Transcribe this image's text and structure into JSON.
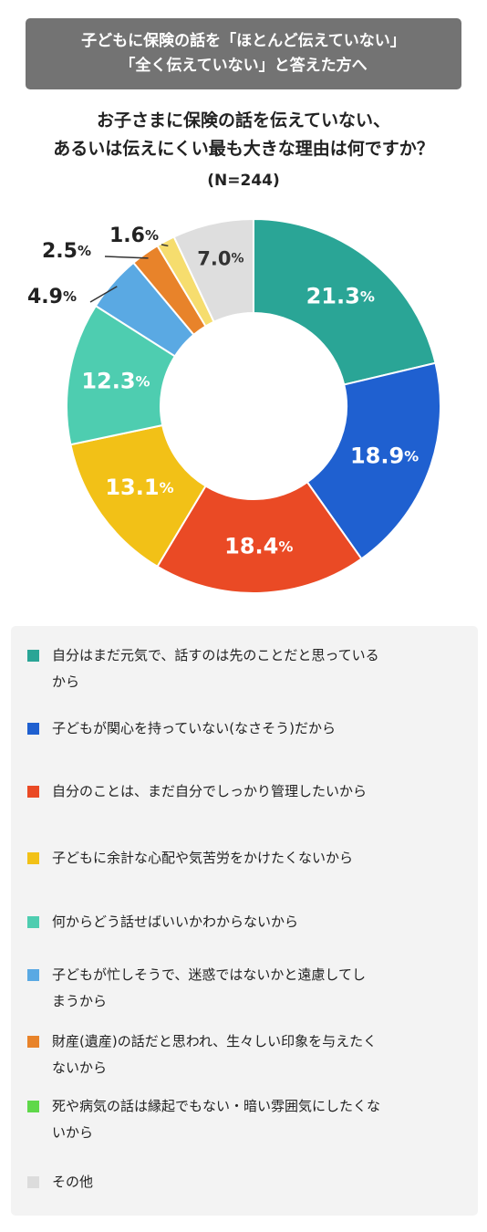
{
  "banner": {
    "line1": "子どもに保険の話を「ほとんど伝えていない」",
    "line2": "「全く伝えていない」と答えた方へ"
  },
  "title": {
    "line1": "お子さまに保険の話を伝えていない、",
    "line2": "あるいは伝えにくい最も大きな理由は何ですか？"
  },
  "sample_size": "(N=244)",
  "chart_data": {
    "type": "pie",
    "donut": true,
    "start": "top, clockwise",
    "unit": "%",
    "slices": [
      {
        "label": "自分はまだ元気で、話すのは先のことだと思っているから",
        "value": 21.3,
        "color": "#2aa596"
      },
      {
        "label": "子どもが関心を持っていない(なさそう)だから",
        "value": 18.9,
        "color": "#1f60d0"
      },
      {
        "label": "自分のことは、まだ自分でしっかり管理したいから",
        "value": 18.4,
        "color": "#ea4a25"
      },
      {
        "label": "子どもに余計な心配や気苦労をかけたくないから",
        "value": 13.1,
        "color": "#f2c117"
      },
      {
        "label": "何からどう話せばいいかわからないから",
        "value": 12.3,
        "color": "#4ecdb0"
      },
      {
        "label": "子どもが忙しそうで、迷惑ではないかと遠慮してしまうから",
        "value": 4.9,
        "color": "#5aa9e3"
      },
      {
        "label": "財産(遺産)の話だと思われ、生々しい印象を与えたくないから",
        "value": 2.5,
        "color": "#e8832a"
      },
      {
        "label": "死や病気の話は縁起でもない・暗い雰囲気にしたくないから",
        "value": 1.6,
        "color": "#f6dd6e"
      },
      {
        "label": "その他",
        "value": 7.0,
        "color": "#dedede"
      }
    ]
  },
  "legend": {
    "items": [
      {
        "line1": "自分はまだ元気で、話すのは先のことだと思っている",
        "line2": "から",
        "color": "#2aa596"
      },
      {
        "line1": "子どもが関心を持っていない(なさそう)だから",
        "line2": "",
        "color": "#1f60d0"
      },
      {
        "line1": "自分のことは、まだ自分でしっかり管理したいから",
        "line2": "",
        "color": "#ea4a25"
      },
      {
        "line1": "子どもに余計な心配や気苦労をかけたくないから",
        "line2": "",
        "color": "#f2c117"
      },
      {
        "line1": "何からどう話せばいいかわからないから",
        "line2": "",
        "color": "#4ecdb0"
      },
      {
        "line1": "子どもが忙しそうで、迷惑ではないかと遠慮してし",
        "line2": "まうから",
        "color": "#5aa9e3"
      },
      {
        "line1": "財産(遺産)の話だと思われ、生々しい印象を与えたく",
        "line2": "ないから",
        "color": "#e8832a"
      },
      {
        "line1": "死や病気の話は縁起でもない・暗い雰囲気にしたくな",
        "line2": "いから",
        "color": "#5fd84a"
      },
      {
        "line1": "その他",
        "line2": "",
        "color": "#dcdcdc"
      }
    ]
  }
}
